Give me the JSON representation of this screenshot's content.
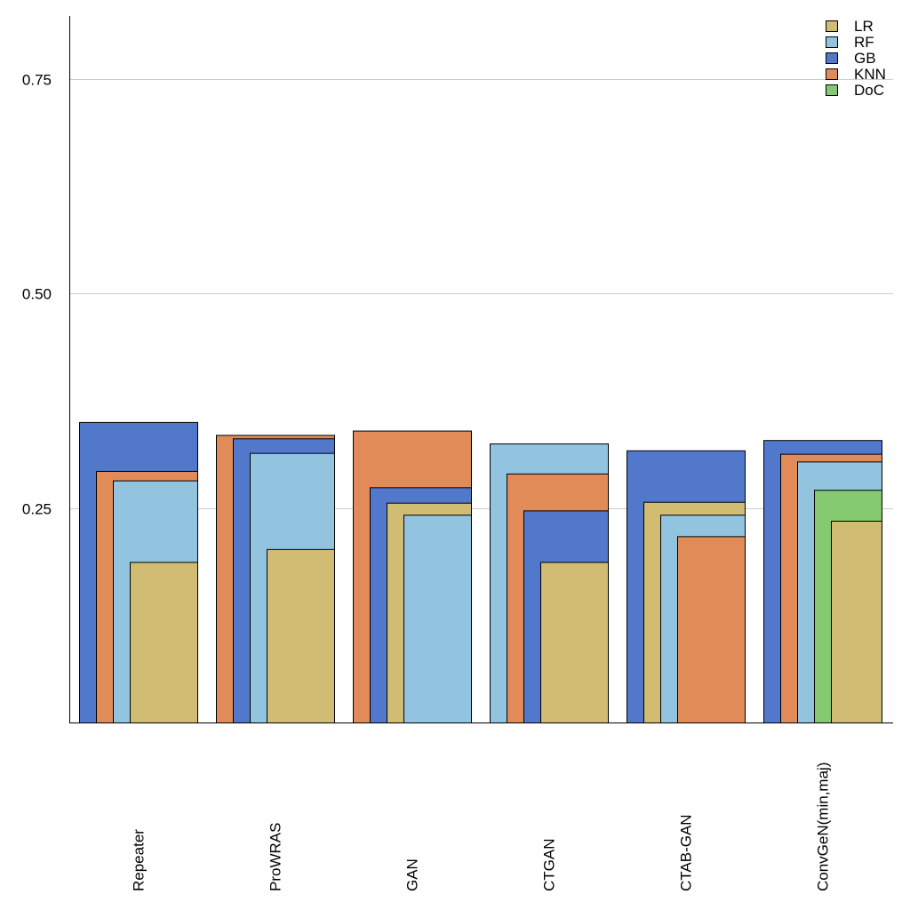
{
  "chart_data": {
    "type": "bar",
    "layout": "overlapping-nested",
    "categories": [
      "Repeater",
      "ProWRAS",
      "GAN",
      "CTGAN",
      "CTAB-GAN",
      "ConvGeN(min,maj)"
    ],
    "series": [
      {
        "name": "LR",
        "color": "#d1bc74",
        "values": [
          0.187,
          0.202,
          0.256,
          0.187,
          0.257,
          0.235
        ]
      },
      {
        "name": "RF",
        "color": "#92c4e0",
        "values": [
          0.282,
          0.314,
          0.242,
          0.325,
          0.242,
          0.304
        ]
      },
      {
        "name": "GB",
        "color": "#5278cb",
        "values": [
          0.35,
          0.331,
          0.274,
          0.247,
          0.317,
          0.329
        ]
      },
      {
        "name": "KNN",
        "color": "#e08b58",
        "values": [
          0.293,
          0.335,
          0.34,
          0.29,
          0.217,
          0.313
        ]
      },
      {
        "name": "DoC",
        "color": "#84c970",
        "values": [
          null,
          null,
          null,
          null,
          null,
          0.271
        ]
      }
    ],
    "yticks": [
      "0.25",
      "0.50",
      "0.75"
    ],
    "ytick_values": [
      0.25,
      0.5,
      0.75
    ],
    "ylim": [
      0,
      0.823
    ],
    "grid": true,
    "legend": "top-right",
    "title": "",
    "xlabel": "",
    "ylabel": ""
  }
}
